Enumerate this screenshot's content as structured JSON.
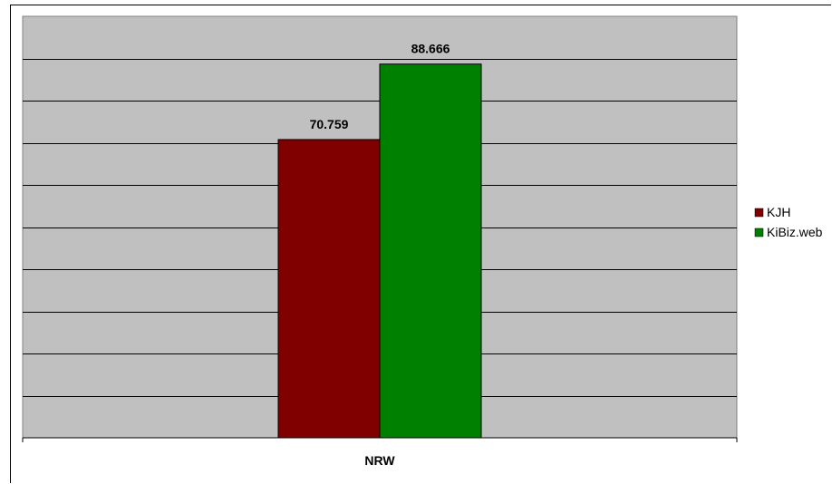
{
  "chart_data": {
    "type": "bar",
    "categories": [
      "NRW"
    ],
    "series": [
      {
        "name": "KJH",
        "values": [
          70.759
        ],
        "label": "70.759",
        "color": "#800000"
      },
      {
        "name": "KiBiz.web",
        "values": [
          88.666
        ],
        "label": "88.666",
        "color": "#008000"
      }
    ],
    "ylim": [
      0,
      100
    ],
    "grid": true,
    "legend": "right",
    "plot_background": "#c0c0c0"
  }
}
